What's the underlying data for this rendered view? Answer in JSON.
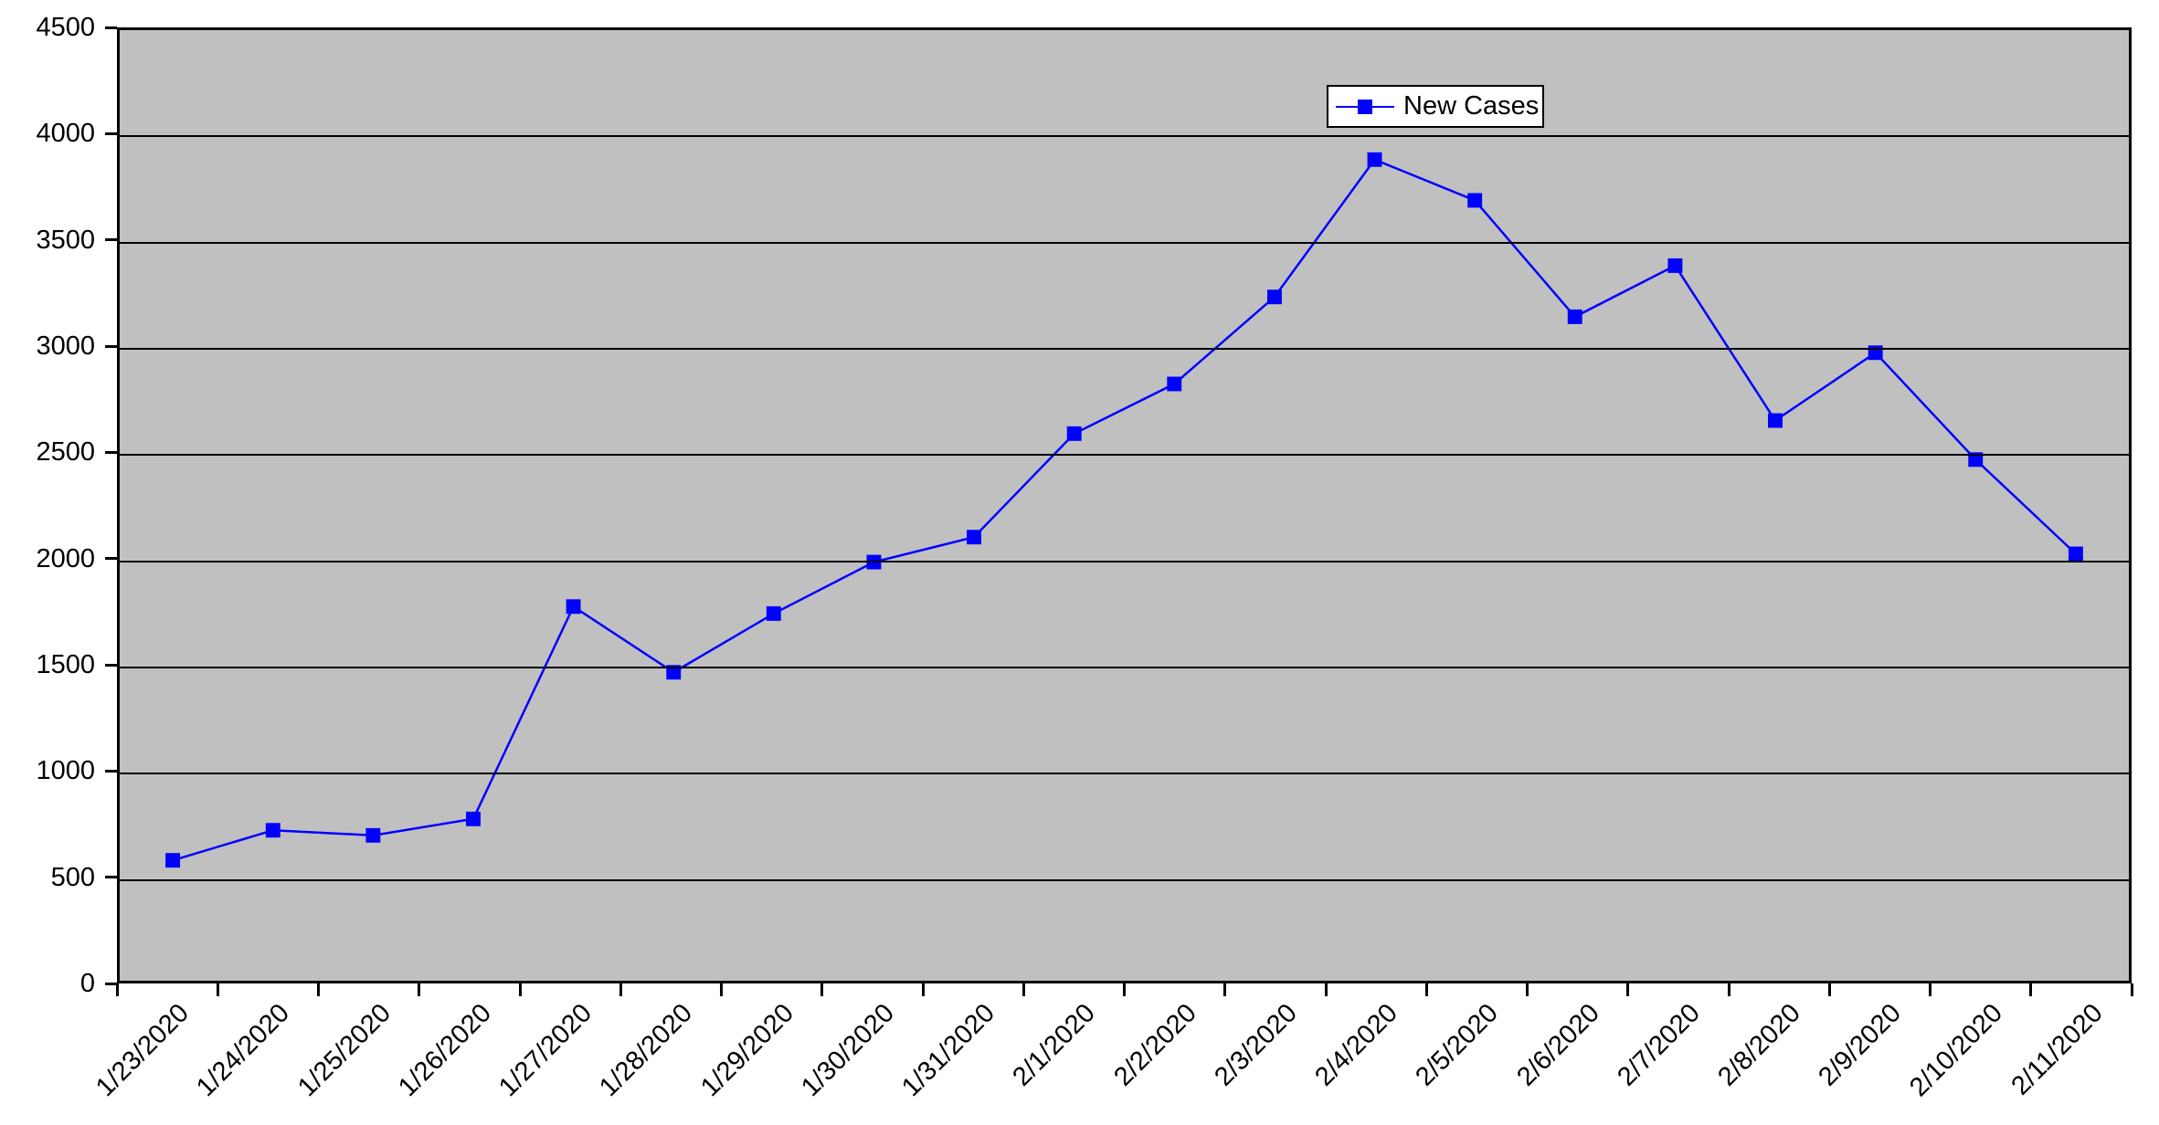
{
  "chart_data": {
    "type": "line",
    "title": "",
    "categories": [
      "1/23/2020",
      "1/24/2020",
      "1/25/2020",
      "1/26/2020",
      "1/27/2020",
      "1/28/2020",
      "1/29/2020",
      "1/30/2020",
      "1/31/2020",
      "2/1/2020",
      "2/2/2020",
      "2/3/2020",
      "2/4/2020",
      "2/5/2020",
      "2/6/2020",
      "2/7/2020",
      "2/8/2020",
      "2/9/2020",
      "2/10/2020",
      "2/11/2020"
    ],
    "series": [
      {
        "name": "New Cases",
        "values": [
          570,
          712,
          688,
          766,
          1771,
          1460,
          1738,
          1982,
          2100,
          2590,
          2825,
          3237,
          3887,
          3694,
          3143,
          3385,
          2652,
          2973,
          2467,
          2021
        ]
      }
    ],
    "xlabel": "",
    "ylabel": "",
    "ylim": [
      0,
      4500
    ],
    "y_ticks": [
      0,
      500,
      1000,
      1500,
      2000,
      2500,
      3000,
      3500,
      4000,
      4500
    ],
    "grid": "horizontal",
    "marker": "square",
    "legend_position": "inside-top-right-of-center",
    "colors": {
      "series": "#0000ff",
      "plot_bg": "#c0c0c0",
      "grid": "#000000",
      "axis": "#000000",
      "text": "#000000",
      "page_bg": "#ffffff",
      "legend_bg": "#ffffff"
    }
  },
  "legend": {
    "label": "New Cases"
  }
}
